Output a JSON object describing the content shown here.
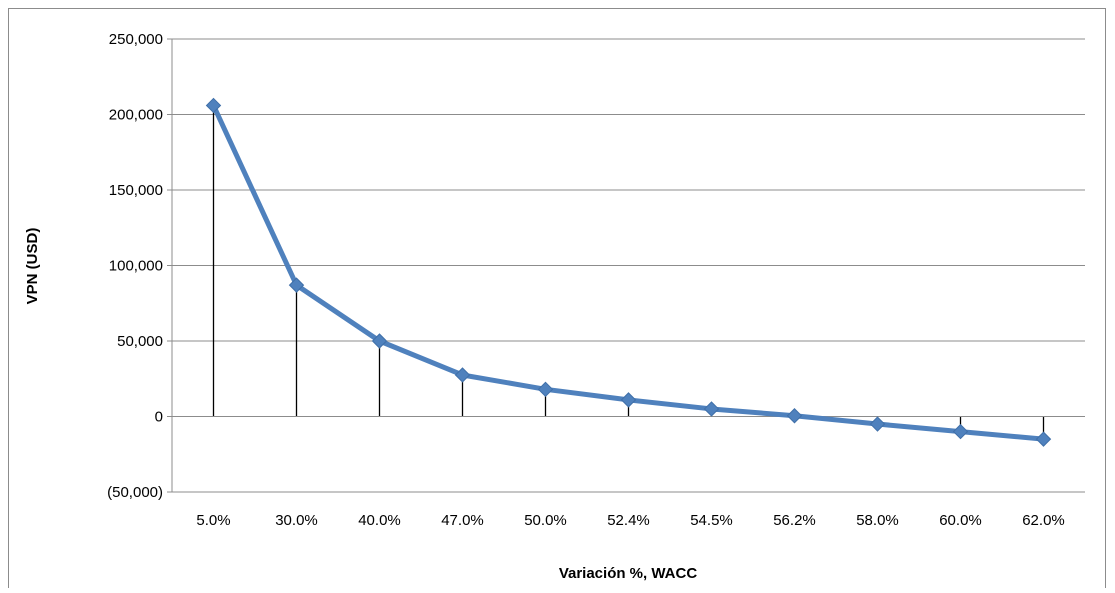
{
  "chart_data": {
    "type": "line",
    "title": "",
    "xlabel": "Variación %, WACC",
    "ylabel": "VPN (USD)",
    "categories": [
      "5.0%",
      "30.0%",
      "40.0%",
      "47.0%",
      "50.0%",
      "52.4%",
      "54.5%",
      "56.2%",
      "58.0%",
      "60.0%",
      "62.0%"
    ],
    "series": [
      {
        "values": [
          206000,
          87000,
          50000,
          27500,
          18000,
          11000,
          5000,
          500,
          -5000,
          -10000,
          -15000
        ],
        "color": "#4f81bd"
      }
    ],
    "ylim": [
      -50000,
      250000
    ],
    "yticks": [
      -50000,
      0,
      50000,
      100000,
      150000,
      200000,
      250000
    ],
    "ytick_labels": [
      "(50,000)",
      "0",
      "50,000",
      "100,000",
      "150,000",
      "200,000",
      "250,000"
    ],
    "grid": "horizontal",
    "drop_lines": true,
    "legend": "none",
    "marker": "diamond"
  }
}
